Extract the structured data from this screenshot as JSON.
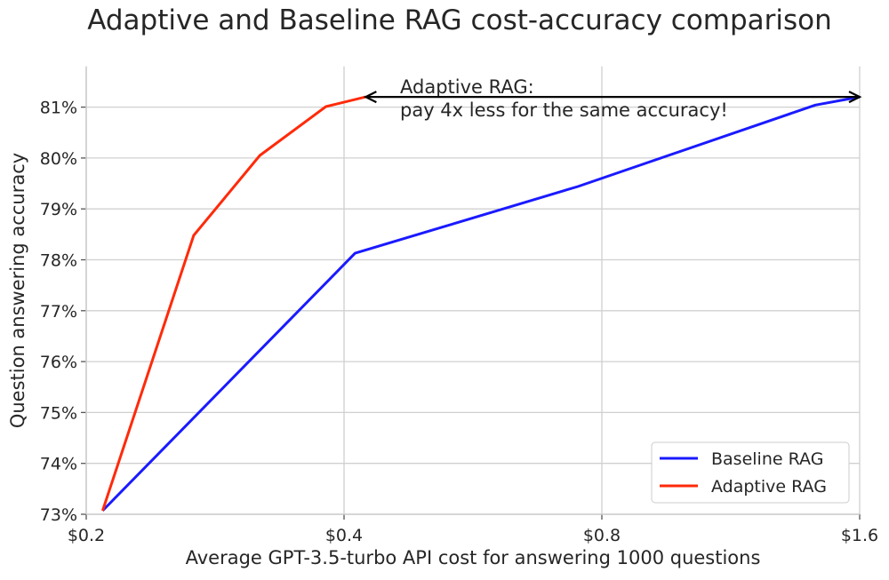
{
  "chart_data": {
    "type": "line",
    "title": "Adaptive and Baseline RAG cost-accuracy comparison",
    "xlabel": "Average GPT-3.5-turbo API cost for answering 1000 questions",
    "ylabel": "Question answering accuracy",
    "x_scale": "log2",
    "xlim": [
      0.2,
      1.6
    ],
    "ylim": [
      73,
      81.8
    ],
    "x_ticks": [
      0.2,
      0.4,
      0.8,
      1.6
    ],
    "x_tick_labels": [
      "$0.2",
      "$0.4",
      "$0.8",
      "$1.6"
    ],
    "y_ticks": [
      73,
      74,
      75,
      76,
      77,
      78,
      79,
      80,
      81
    ],
    "y_tick_labels": [
      "73%",
      "74%",
      "75%",
      "76%",
      "77%",
      "78%",
      "79%",
      "80%",
      "81%"
    ],
    "grid": true,
    "legend_position": "bottom-right",
    "series": [
      {
        "name": "Baseline RAG",
        "color": "#1a1aff",
        "x": [
          0.209,
          0.412,
          0.75,
          1.42,
          1.6
        ],
        "y": [
          73.07,
          78.13,
          79.44,
          81.04,
          81.2
        ]
      },
      {
        "name": "Adaptive RAG",
        "color": "#ff2a0a",
        "x": [
          0.209,
          0.267,
          0.319,
          0.381,
          0.424
        ],
        "y": [
          73.07,
          78.48,
          80.05,
          81.01,
          81.2
        ]
      }
    ],
    "annotation": {
      "lines": [
        "Adaptive RAG:",
        "pay 4x less for the same accuracy!"
      ],
      "arrow_from": [
        1.6,
        81.2
      ],
      "arrow_to": [
        0.424,
        81.2
      ]
    }
  }
}
